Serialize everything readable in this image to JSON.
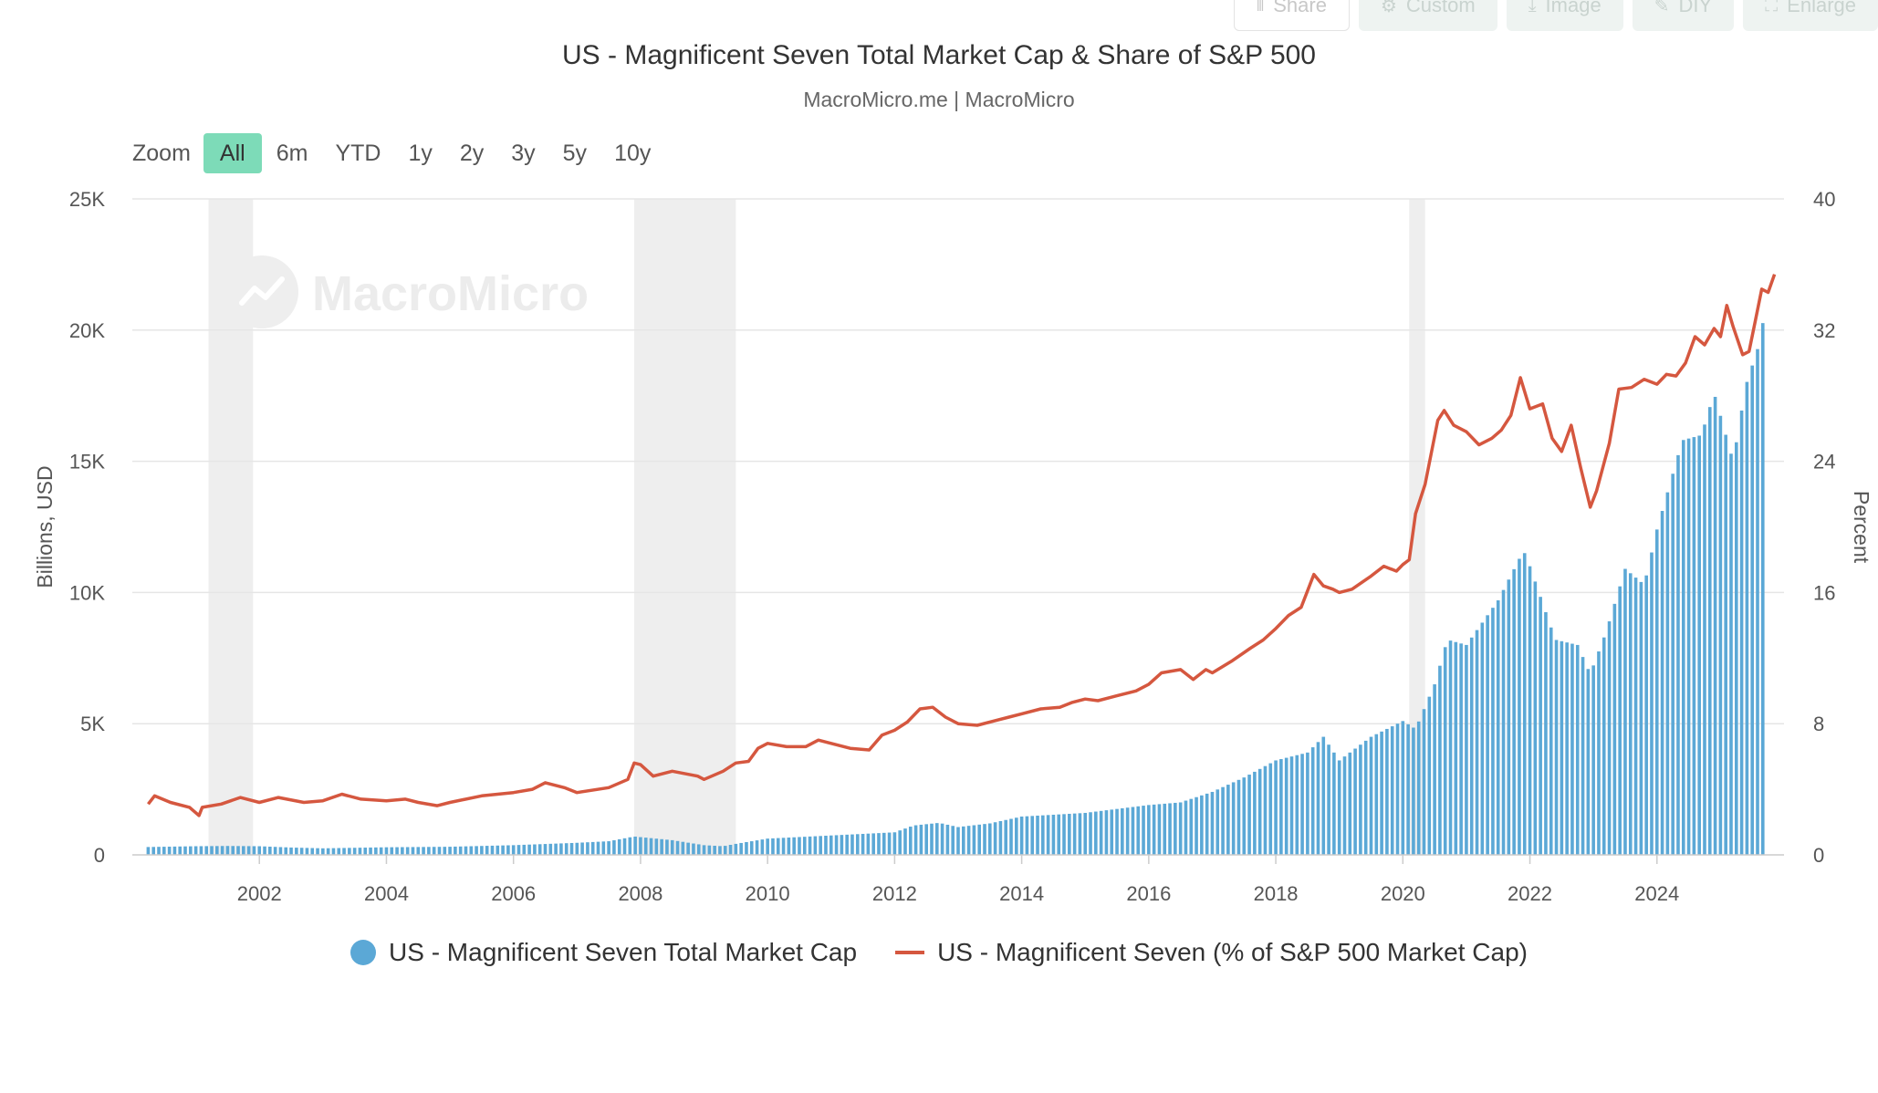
{
  "toolbar": {
    "share": "Share",
    "custom": "Custom",
    "image": "Image",
    "diy": "DIY",
    "enlarge": "Enlarge"
  },
  "title": "US - Magnificent Seven Total Market Cap & Share of S&P 500",
  "subtitle": "MacroMicro.me | MacroMicro",
  "watermark": "MacroMicro",
  "zoom": {
    "label": "Zoom",
    "options": [
      "All",
      "6m",
      "YTD",
      "1y",
      "2y",
      "3y",
      "5y",
      "10y"
    ],
    "active": "All"
  },
  "colors": {
    "bar": "#5ba8d6",
    "line": "#d5573f",
    "recession": "#eeeeee",
    "grid": "#e6e6e6",
    "zoom_active": "#7ddbb8"
  },
  "chart_data": {
    "type": "bar+line",
    "ylabel": "Billions, USD",
    "y2label": "Percent",
    "ylim": [
      0,
      25000
    ],
    "y2lim": [
      0,
      40
    ],
    "y_ticks": [
      "0",
      "5K",
      "10K",
      "15K",
      "20K",
      "25K"
    ],
    "y2_ticks": [
      "0",
      "8",
      "16",
      "24",
      "32",
      "40"
    ],
    "x_ticks": [
      "2002",
      "2004",
      "2006",
      "2008",
      "2010",
      "2012",
      "2014",
      "2016",
      "2018",
      "2020",
      "2022",
      "2024"
    ],
    "x_range": [
      2000.0,
      2026.0
    ],
    "recessions": [
      [
        2001.2,
        2001.9
      ],
      [
        2007.9,
        2009.5
      ],
      [
        2020.1,
        2020.35
      ]
    ],
    "series": [
      {
        "name": "US - Magnificent Seven Total Market Cap",
        "type": "bar",
        "axis": "left",
        "points": [
          [
            2000.25,
            300
          ],
          [
            2001.0,
            330
          ],
          [
            2001.5,
            340
          ],
          [
            2002.0,
            330
          ],
          [
            2002.5,
            280
          ],
          [
            2003.0,
            250
          ],
          [
            2003.5,
            270
          ],
          [
            2004.0,
            290
          ],
          [
            2005.0,
            310
          ],
          [
            2006.0,
            370
          ],
          [
            2007.0,
            460
          ],
          [
            2007.5,
            520
          ],
          [
            2007.9,
            700
          ],
          [
            2008.5,
            560
          ],
          [
            2009.0,
            370
          ],
          [
            2009.3,
            330
          ],
          [
            2009.5,
            420
          ],
          [
            2010.0,
            620
          ],
          [
            2011.0,
            740
          ],
          [
            2012.0,
            860
          ],
          [
            2012.3,
            1120
          ],
          [
            2012.7,
            1220
          ],
          [
            2013.0,
            1060
          ],
          [
            2013.5,
            1200
          ],
          [
            2014.0,
            1460
          ],
          [
            2015.0,
            1600
          ],
          [
            2015.5,
            1750
          ],
          [
            2016.0,
            1900
          ],
          [
            2016.5,
            2000
          ],
          [
            2017.0,
            2400
          ],
          [
            2017.5,
            2950
          ],
          [
            2018.0,
            3600
          ],
          [
            2018.5,
            3900
          ],
          [
            2018.75,
            4500
          ],
          [
            2019.0,
            3600
          ],
          [
            2019.5,
            4500
          ],
          [
            2020.0,
            5100
          ],
          [
            2020.2,
            4800
          ],
          [
            2020.5,
            6500
          ],
          [
            2020.7,
            8200
          ],
          [
            2021.0,
            8000
          ],
          [
            2021.5,
            9700
          ],
          [
            2021.9,
            11600
          ],
          [
            2022.0,
            11000
          ],
          [
            2022.4,
            8200
          ],
          [
            2022.75,
            8000
          ],
          [
            2022.95,
            6900
          ],
          [
            2023.2,
            8500
          ],
          [
            2023.5,
            10900
          ],
          [
            2023.8,
            10300
          ],
          [
            2024.0,
            12400
          ],
          [
            2024.4,
            15800
          ],
          [
            2024.7,
            16000
          ],
          [
            2024.9,
            17600
          ],
          [
            2025.2,
            15000
          ],
          [
            2025.4,
            17900
          ],
          [
            2025.6,
            19400
          ],
          [
            2025.7,
            20700
          ]
        ]
      },
      {
        "name": "US - Magnificent Seven (% of S&P 500 Market Cap)",
        "type": "line",
        "axis": "right",
        "points": [
          [
            2000.25,
            3.1
          ],
          [
            2000.35,
            3.6
          ],
          [
            2000.6,
            3.2
          ],
          [
            2000.9,
            2.9
          ],
          [
            2001.05,
            2.4
          ],
          [
            2001.1,
            2.9
          ],
          [
            2001.4,
            3.1
          ],
          [
            2001.7,
            3.5
          ],
          [
            2002.0,
            3.2
          ],
          [
            2002.3,
            3.5
          ],
          [
            2002.7,
            3.2
          ],
          [
            2003.0,
            3.3
          ],
          [
            2003.3,
            3.7
          ],
          [
            2003.6,
            3.4
          ],
          [
            2004.0,
            3.3
          ],
          [
            2004.3,
            3.4
          ],
          [
            2004.5,
            3.2
          ],
          [
            2004.8,
            3.0
          ],
          [
            2005.0,
            3.2
          ],
          [
            2005.5,
            3.6
          ],
          [
            2006.0,
            3.8
          ],
          [
            2006.3,
            4.0
          ],
          [
            2006.5,
            4.4
          ],
          [
            2006.8,
            4.1
          ],
          [
            2007.0,
            3.8
          ],
          [
            2007.5,
            4.1
          ],
          [
            2007.8,
            4.6
          ],
          [
            2007.9,
            5.6
          ],
          [
            2008.0,
            5.5
          ],
          [
            2008.2,
            4.8
          ],
          [
            2008.5,
            5.1
          ],
          [
            2008.9,
            4.8
          ],
          [
            2009.0,
            4.6
          ],
          [
            2009.3,
            5.1
          ],
          [
            2009.5,
            5.6
          ],
          [
            2009.7,
            5.7
          ],
          [
            2009.85,
            6.5
          ],
          [
            2010.0,
            6.8
          ],
          [
            2010.3,
            6.6
          ],
          [
            2010.6,
            6.6
          ],
          [
            2010.8,
            7.0
          ],
          [
            2011.0,
            6.8
          ],
          [
            2011.3,
            6.5
          ],
          [
            2011.6,
            6.4
          ],
          [
            2011.8,
            7.3
          ],
          [
            2012.0,
            7.6
          ],
          [
            2012.2,
            8.1
          ],
          [
            2012.4,
            8.9
          ],
          [
            2012.6,
            9.0
          ],
          [
            2012.8,
            8.4
          ],
          [
            2013.0,
            8.0
          ],
          [
            2013.3,
            7.9
          ],
          [
            2013.6,
            8.2
          ],
          [
            2013.8,
            8.4
          ],
          [
            2014.0,
            8.6
          ],
          [
            2014.3,
            8.9
          ],
          [
            2014.6,
            9.0
          ],
          [
            2014.8,
            9.3
          ],
          [
            2015.0,
            9.5
          ],
          [
            2015.2,
            9.4
          ],
          [
            2015.5,
            9.7
          ],
          [
            2015.8,
            10.0
          ],
          [
            2016.0,
            10.4
          ],
          [
            2016.2,
            11.1
          ],
          [
            2016.5,
            11.3
          ],
          [
            2016.7,
            10.7
          ],
          [
            2016.9,
            11.3
          ],
          [
            2017.0,
            11.1
          ],
          [
            2017.3,
            11.8
          ],
          [
            2017.6,
            12.6
          ],
          [
            2017.8,
            13.1
          ],
          [
            2018.0,
            13.8
          ],
          [
            2018.2,
            14.6
          ],
          [
            2018.4,
            15.1
          ],
          [
            2018.6,
            17.1
          ],
          [
            2018.75,
            16.4
          ],
          [
            2018.9,
            16.2
          ],
          [
            2019.0,
            16.0
          ],
          [
            2019.2,
            16.2
          ],
          [
            2019.5,
            17.0
          ],
          [
            2019.7,
            17.6
          ],
          [
            2019.9,
            17.3
          ],
          [
            2020.0,
            17.7
          ],
          [
            2020.1,
            18.0
          ],
          [
            2020.2,
            20.8
          ],
          [
            2020.35,
            22.6
          ],
          [
            2020.55,
            26.5
          ],
          [
            2020.65,
            27.1
          ],
          [
            2020.8,
            26.2
          ],
          [
            2021.0,
            25.8
          ],
          [
            2021.2,
            25.0
          ],
          [
            2021.4,
            25.4
          ],
          [
            2021.55,
            25.9
          ],
          [
            2021.7,
            26.8
          ],
          [
            2021.85,
            29.1
          ],
          [
            2022.0,
            27.2
          ],
          [
            2022.2,
            27.5
          ],
          [
            2022.35,
            25.4
          ],
          [
            2022.5,
            24.6
          ],
          [
            2022.65,
            26.2
          ],
          [
            2022.8,
            23.6
          ],
          [
            2022.95,
            21.2
          ],
          [
            2023.05,
            22.2
          ],
          [
            2023.25,
            25.1
          ],
          [
            2023.4,
            28.4
          ],
          [
            2023.6,
            28.5
          ],
          [
            2023.8,
            29.0
          ],
          [
            2024.0,
            28.7
          ],
          [
            2024.15,
            29.3
          ],
          [
            2024.3,
            29.2
          ],
          [
            2024.45,
            30.0
          ],
          [
            2024.6,
            31.6
          ],
          [
            2024.75,
            31.1
          ],
          [
            2024.9,
            32.1
          ],
          [
            2025.0,
            31.6
          ],
          [
            2025.1,
            33.5
          ],
          [
            2025.2,
            32.2
          ],
          [
            2025.35,
            30.5
          ],
          [
            2025.45,
            30.7
          ],
          [
            2025.55,
            32.6
          ],
          [
            2025.65,
            34.5
          ],
          [
            2025.75,
            34.3
          ],
          [
            2025.85,
            35.4
          ]
        ]
      }
    ],
    "legend": "bottom"
  }
}
